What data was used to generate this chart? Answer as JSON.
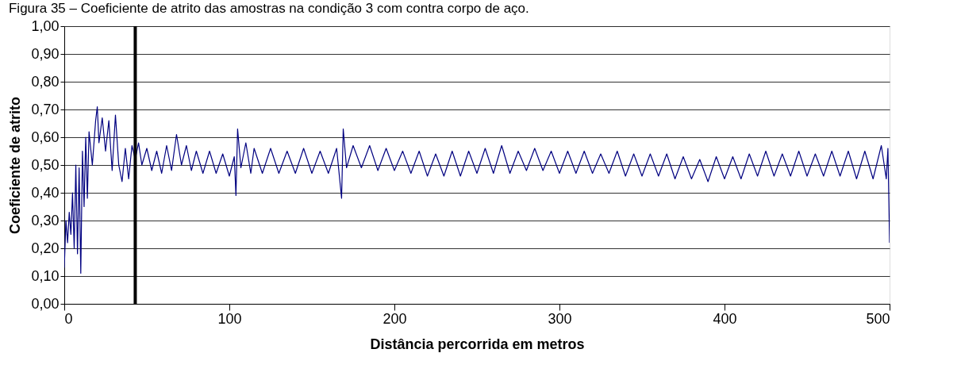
{
  "chart_data": {
    "type": "line",
    "title": "Figura 35 – Coeficiente de atrito das amostras na condição 3 com contra corpo de aço.",
    "xlabel": "Distância percorrida em metros",
    "ylabel": "Coeficiente de atrito",
    "x": [
      0,
      1,
      2,
      3,
      4,
      5,
      6,
      7,
      8,
      9,
      10,
      11,
      12,
      13,
      14,
      15,
      17,
      19,
      20,
      21,
      23,
      25,
      27,
      29,
      31,
      33,
      35,
      37,
      39,
      41,
      43,
      45,
      47,
      50,
      53,
      56,
      59,
      62,
      65,
      68,
      71,
      74,
      77,
      80,
      84,
      88,
      92,
      96,
      100,
      103,
      104,
      105,
      107,
      110,
      113,
      115,
      120,
      125,
      130,
      135,
      140,
      145,
      150,
      155,
      160,
      165,
      168,
      169,
      171,
      175,
      180,
      185,
      190,
      195,
      200,
      205,
      210,
      215,
      220,
      225,
      230,
      235,
      240,
      245,
      250,
      255,
      260,
      265,
      270,
      275,
      280,
      285,
      290,
      295,
      300,
      305,
      310,
      315,
      320,
      325,
      330,
      335,
      340,
      345,
      350,
      355,
      360,
      365,
      370,
      375,
      380,
      385,
      390,
      395,
      400,
      405,
      410,
      415,
      420,
      425,
      430,
      435,
      440,
      445,
      450,
      455,
      460,
      465,
      470,
      475,
      480,
      485,
      490,
      495,
      498,
      499,
      500
    ],
    "series": [
      {
        "color": "#000080",
        "values": [
          0.13,
          0.3,
          0.22,
          0.33,
          0.25,
          0.4,
          0.2,
          0.5,
          0.18,
          0.49,
          0.11,
          0.55,
          0.35,
          0.6,
          0.38,
          0.62,
          0.5,
          0.66,
          0.71,
          0.58,
          0.67,
          0.55,
          0.66,
          0.48,
          0.68,
          0.5,
          0.44,
          0.56,
          0.45,
          0.57,
          0.52,
          0.58,
          0.5,
          0.56,
          0.48,
          0.55,
          0.47,
          0.57,
          0.48,
          0.61,
          0.5,
          0.57,
          0.48,
          0.55,
          0.47,
          0.55,
          0.47,
          0.54,
          0.46,
          0.53,
          0.39,
          0.63,
          0.49,
          0.58,
          0.47,
          0.56,
          0.47,
          0.56,
          0.47,
          0.55,
          0.47,
          0.56,
          0.47,
          0.55,
          0.47,
          0.56,
          0.38,
          0.63,
          0.49,
          0.57,
          0.49,
          0.57,
          0.48,
          0.56,
          0.48,
          0.55,
          0.47,
          0.55,
          0.46,
          0.54,
          0.46,
          0.55,
          0.46,
          0.55,
          0.47,
          0.56,
          0.47,
          0.57,
          0.47,
          0.55,
          0.48,
          0.56,
          0.48,
          0.55,
          0.47,
          0.55,
          0.47,
          0.55,
          0.47,
          0.54,
          0.47,
          0.55,
          0.46,
          0.54,
          0.46,
          0.54,
          0.46,
          0.54,
          0.45,
          0.53,
          0.45,
          0.52,
          0.44,
          0.53,
          0.45,
          0.53,
          0.45,
          0.54,
          0.46,
          0.55,
          0.46,
          0.54,
          0.46,
          0.55,
          0.46,
          0.54,
          0.46,
          0.55,
          0.46,
          0.55,
          0.45,
          0.55,
          0.45,
          0.57,
          0.45,
          0.56,
          0.22
        ]
      }
    ],
    "xlim": [
      0,
      500
    ],
    "xticks": [
      0,
      100,
      200,
      300,
      400,
      500
    ],
    "ylim": [
      0,
      1
    ],
    "yticks": [
      {
        "value": 0,
        "label": "0,00"
      },
      {
        "value": 0.1,
        "label": "0,10"
      },
      {
        "value": 0.2,
        "label": "0,20"
      },
      {
        "value": 0.3,
        "label": "0,30"
      },
      {
        "value": 0.4,
        "label": "0,40"
      },
      {
        "value": 0.5,
        "label": "0,50"
      },
      {
        "value": 0.6,
        "label": "0,60"
      },
      {
        "value": 0.7,
        "label": "0,70"
      },
      {
        "value": 0.8,
        "label": "0,80"
      },
      {
        "value": 0.9,
        "label": "0,90"
      },
      {
        "value": 1,
        "label": "1,00"
      }
    ],
    "grid": "y",
    "line_style": "solid",
    "marker": "none",
    "ref_lines": [
      {
        "axis": "x",
        "value": 43,
        "color": "#000000"
      }
    ]
  }
}
